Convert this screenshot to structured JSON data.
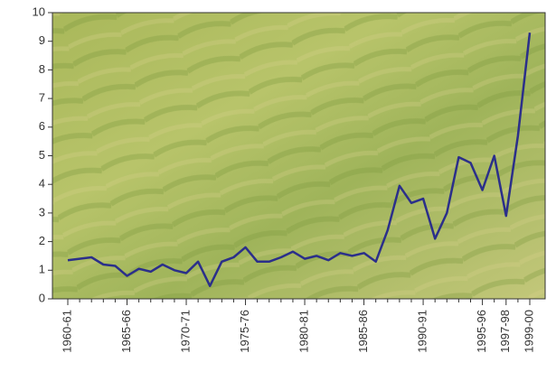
{
  "chart_data": {
    "type": "line",
    "categories": [
      "1960-61",
      null,
      null,
      null,
      null,
      "1965-66",
      null,
      null,
      null,
      null,
      "1970-71",
      null,
      null,
      null,
      null,
      "1975-76",
      null,
      null,
      null,
      null,
      "1980-81",
      null,
      null,
      null,
      null,
      "1985-86",
      null,
      null,
      null,
      null,
      "1990-91",
      null,
      null,
      null,
      null,
      "1995-96",
      null,
      "1997-98",
      null,
      "1999-00"
    ],
    "series": [
      {
        "color": "#2b2f8a",
        "values": [
          1.35,
          1.4,
          1.45,
          1.2,
          1.15,
          0.8,
          1.05,
          0.95,
          1.2,
          1.0,
          0.9,
          1.3,
          0.45,
          1.3,
          1.45,
          1.8,
          1.3,
          1.3,
          1.45,
          1.65,
          1.4,
          1.5,
          1.35,
          1.6,
          1.5,
          1.6,
          1.3,
          2.4,
          3.95,
          3.35,
          3.5,
          2.1,
          3.0,
          4.95,
          4.75,
          3.8,
          5.0,
          2.9,
          5.7,
          9.3
        ]
      }
    ],
    "ylim": [
      0,
      10
    ],
    "yticks": [
      0,
      1,
      2,
      3,
      4,
      5,
      6,
      7,
      8,
      9,
      10
    ]
  }
}
